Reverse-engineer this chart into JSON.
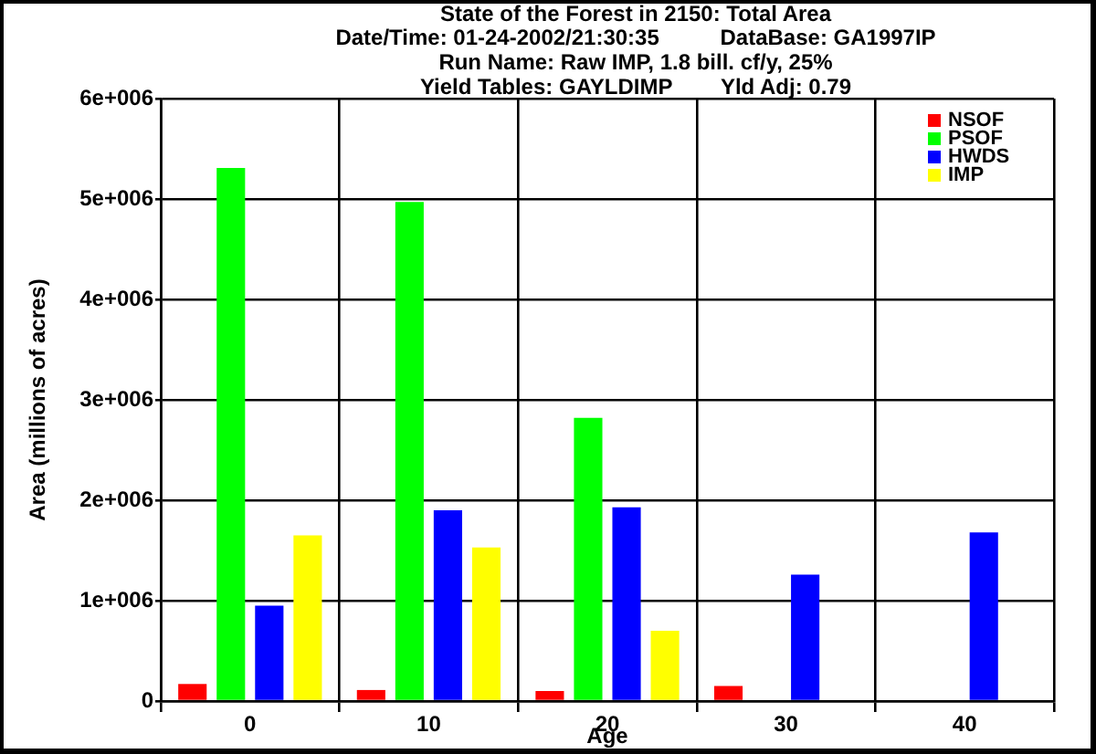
{
  "chart_data": {
    "type": "bar",
    "title": "State of the Forest in 2150: Total Area",
    "subtitle": "Date/Time: 01-24-2002/21:30:35          DataBase: GA1997IP\nRun Name: Raw IMP, 1.8 bill. cf/y, 25%\nYield Tables: GAYLDIMP        Yld Adj: 0.79",
    "xlabel": "Age",
    "ylabel": "Area (millions of acres)",
    "categories": [
      "0",
      "10",
      "20",
      "30",
      "40"
    ],
    "series": [
      {
        "name": "NSOF",
        "color": "#ff0000",
        "values": [
          170000,
          110000,
          100000,
          150000,
          null
        ]
      },
      {
        "name": "PSOF",
        "color": "#00ff00",
        "values": [
          5310000,
          4970000,
          2820000,
          null,
          null
        ]
      },
      {
        "name": "HWDS",
        "color": "#0000ff",
        "values": [
          950000,
          1900000,
          1930000,
          1260000,
          1680000
        ]
      },
      {
        "name": "IMP",
        "color": "#ffff00",
        "values": [
          1650000,
          1530000,
          700000,
          null,
          null
        ]
      }
    ],
    "ylim": [
      0,
      6000000
    ],
    "yticks": [
      0,
      {
        "value": 1000000,
        "label": "1e+006"
      },
      {
        "value": 2000000,
        "label": "2e+006"
      },
      {
        "value": 3000000,
        "label": "3e+006"
      },
      {
        "value": 4000000,
        "label": "4e+006"
      },
      {
        "value": 5000000,
        "label": "5e+006"
      },
      {
        "value": 6000000,
        "label": "6e+006"
      }
    ],
    "grid": true,
    "legend": "top right"
  }
}
